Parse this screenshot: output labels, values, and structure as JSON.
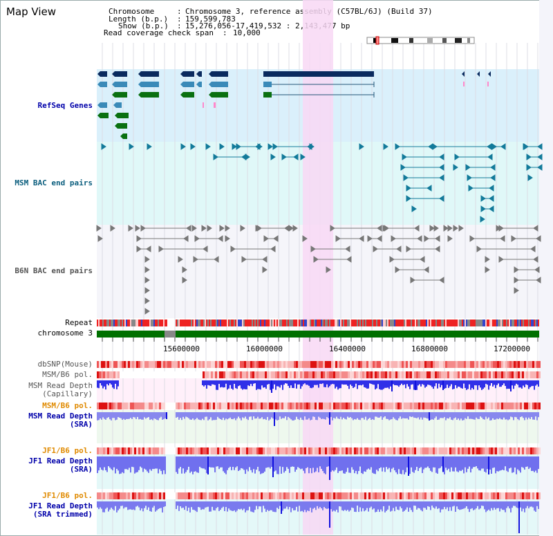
{
  "title": "Map View",
  "info": {
    "chromosome_label": "Chromosome",
    "chromosome_value": "Chromosome 3, reference assembly (C57BL/6J) (Build 37)",
    "length_label": "Length (b.p.)",
    "length_value": "159,599,783",
    "show_label": "Show (b.p.)",
    "show_value": "15,276,056-17,419,532 : 2,143,477 bp",
    "coverage_label": "Read coverage check span",
    "coverage_value": "10,000"
  },
  "tracks": {
    "refseq": "RefSeq Genes",
    "msm_bac": "MSM BAC end pairs",
    "b6n_bac": "B6N BAC end pairs",
    "repeat": "Repeat",
    "chromosome": "chromosome 3",
    "dbsnp": "dbSNP(Mouse)",
    "msm_b6_pol_1": "MSM/B6 pol.",
    "msm_depth_cap_1": "MSM Read Depth",
    "msm_depth_cap_2": "(Capillary)",
    "msm_b6_pol_2": "MSM/B6 pol.",
    "msm_depth_sra_1": "MSM Read Depth",
    "msm_depth_sra_2": "(SRA)",
    "jf1_b6_pol_1": "JF1/B6 pol.",
    "jf1_depth_sra_1": "JF1 Read Depth",
    "jf1_depth_sra_2": "(SRA)",
    "jf1_b6_pol_2": "JF1/B6 pol.",
    "jf1_depth_trim_1": "JF1 Read Depth",
    "jf1_depth_trim_2": "(SRA trimmed)"
  },
  "axis": {
    "ticks": [
      "15600000",
      "16000000",
      "16400000",
      "16800000",
      "17200000"
    ]
  },
  "colors": {
    "refseq_bg": "#daf0fb",
    "msm_bg": "#e0f8f8",
    "b6n_bg": "#f5f5fa",
    "highlight": "#f8d8f4",
    "chromosome": "#007000",
    "gene_dark": "#0a2a5e",
    "gene_mid": "#3a8ab8",
    "gene_green": "#0a7010",
    "bac_teal": "#127a9a",
    "bac_gray": "#777777",
    "depth_blue": "#4a4ae8",
    "pol_red": "#ee3a3a"
  }
}
